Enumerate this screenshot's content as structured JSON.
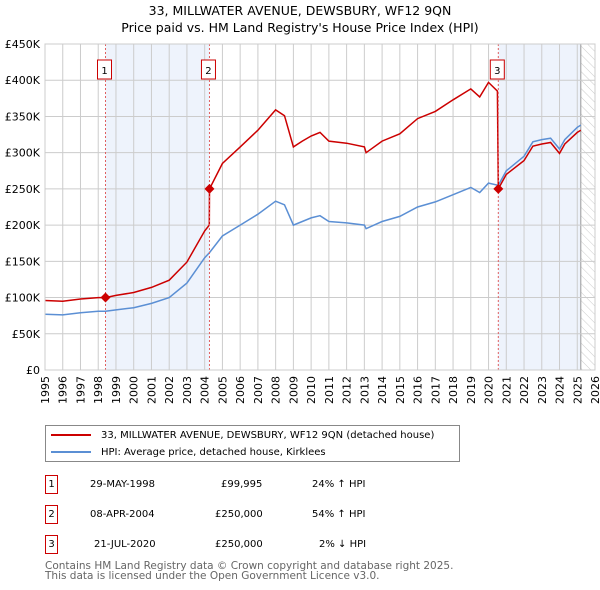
{
  "title": "33, MILLWATER AVENUE, DEWSBURY, WF12 9QN",
  "subtitle": "Price paid vs. HM Land Registry's House Price Index (HPI)",
  "colors": {
    "property": "#cc0000",
    "hpi": "#5b8fd4",
    "shade": "#eef3fc"
  },
  "chart_data": {
    "type": "line",
    "title": "33, MILLWATER AVENUE, DEWSBURY, WF12 9QN — Price paid vs. HM Land Registry's House Price Index (HPI)",
    "xlim": [
      1995,
      2026
    ],
    "ylim": [
      0,
      450000
    ],
    "x_ticks": [
      "1995",
      "1996",
      "1997",
      "1998",
      "1999",
      "2000",
      "2001",
      "2002",
      "2003",
      "2004",
      "2005",
      "2006",
      "2007",
      "2008",
      "2009",
      "2010",
      "2011",
      "2012",
      "2013",
      "2014",
      "2015",
      "2016",
      "2017",
      "2018",
      "2019",
      "2020",
      "2021",
      "2022",
      "2023",
      "2024",
      "2025",
      "2026"
    ],
    "y_ticks": [
      {
        "value": 0,
        "label": "£0"
      },
      {
        "value": 50000,
        "label": "£50K"
      },
      {
        "value": 100000,
        "label": "£100K"
      },
      {
        "value": 150000,
        "label": "£150K"
      },
      {
        "value": 200000,
        "label": "£200K"
      },
      {
        "value": 250000,
        "label": "£250K"
      },
      {
        "value": 300000,
        "label": "£300K"
      },
      {
        "value": 350000,
        "label": "£350K"
      },
      {
        "value": 400000,
        "label": "£400K"
      },
      {
        "value": 450000,
        "label": "£450K"
      }
    ],
    "grid": true,
    "legend_placement": "below",
    "series": [
      {
        "name": "33, MILLWATER AVENUE, DEWSBURY, WF12 9QN (detached house)",
        "color": "#cc0000",
        "x": [
          1995,
          1996,
          1997,
          1998,
          1998.41,
          1999,
          2000,
          2001,
          2002,
          2003,
          2004,
          2004.26,
          2004.27,
          2005,
          2006,
          2007,
          2008,
          2008.5,
          2009,
          2009.5,
          2010,
          2010.5,
          2011,
          2012,
          2013,
          2013.1,
          2014,
          2015,
          2016,
          2017,
          2018,
          2019,
          2019.5,
          2020,
          2020.5,
          2020.55,
          2021,
          2022,
          2022.5,
          2023,
          2023.5,
          2024,
          2024.3,
          2025,
          2025.2
        ],
        "y": [
          96000,
          95000,
          98000,
          100000,
          99995,
          103000,
          107000,
          114000,
          124000,
          149000,
          192000,
          200000,
          250000,
          285000,
          308000,
          331000,
          359000,
          351000,
          308000,
          316000,
          323000,
          328000,
          316000,
          313000,
          308000,
          300000,
          316000,
          326000,
          347000,
          357000,
          373000,
          388000,
          377000,
          397000,
          385000,
          250000,
          270000,
          289000,
          309000,
          312000,
          314000,
          299000,
          312000,
          328000,
          331000
        ]
      },
      {
        "name": "HPI: Average price, detached house, Kirklees",
        "color": "#5b8fd4",
        "x": [
          1995,
          1996,
          1997,
          1998,
          1998.41,
          1999,
          2000,
          2001,
          2002,
          2003,
          2004,
          2004.27,
          2005,
          2006,
          2007,
          2008,
          2008.5,
          2009,
          2009.5,
          2010,
          2010.5,
          2011,
          2012,
          2013,
          2013.1,
          2014,
          2015,
          2016,
          2017,
          2018,
          2019,
          2019.5,
          2020,
          2020.55,
          2021,
          2022,
          2022.5,
          2023,
          2023.5,
          2024,
          2024.3,
          2025,
          2025.2
        ],
        "y": [
          77000,
          76000,
          79000,
          81000,
          81000,
          83000,
          86000,
          92000,
          100000,
          120000,
          155000,
          162000,
          185000,
          200000,
          215000,
          233000,
          228000,
          200000,
          205000,
          210000,
          213000,
          205000,
          203000,
          200000,
          195000,
          205000,
          212000,
          225000,
          232000,
          242000,
          252000,
          245000,
          258000,
          255000,
          275000,
          295000,
          315000,
          318000,
          320000,
          305000,
          318000,
          335000,
          338000
        ]
      }
    ],
    "sales": [
      {
        "label": "1",
        "x": 1998.41,
        "y": 99995
      },
      {
        "label": "2",
        "x": 2004.27,
        "y": 250000
      },
      {
        "label": "3",
        "x": 2020.55,
        "y": 250000
      }
    ],
    "shaded_ranges": [
      [
        1998.41,
        2004.27
      ],
      [
        2020.55,
        2025.2
      ]
    ],
    "forecast_hatch_from": 2025.2
  },
  "legend": [
    {
      "label": "33, MILLWATER AVENUE, DEWSBURY, WF12 9QN (detached house)"
    },
    {
      "label": "HPI: Average price, detached house, Kirklees"
    }
  ],
  "transactions": [
    {
      "num": "1",
      "date": "29-MAY-1998",
      "price": "£99,995",
      "delta": "24% ↑ HPI"
    },
    {
      "num": "2",
      "date": "08-APR-2004",
      "price": "£250,000",
      "delta": "54% ↑ HPI"
    },
    {
      "num": "3",
      "date": "21-JUL-2020",
      "price": "£250,000",
      "delta": "2% ↓ HPI"
    }
  ],
  "footer": {
    "line1": "Contains HM Land Registry data © Crown copyright and database right 2025.",
    "line2": "This data is licensed under the Open Government Licence v3.0."
  }
}
